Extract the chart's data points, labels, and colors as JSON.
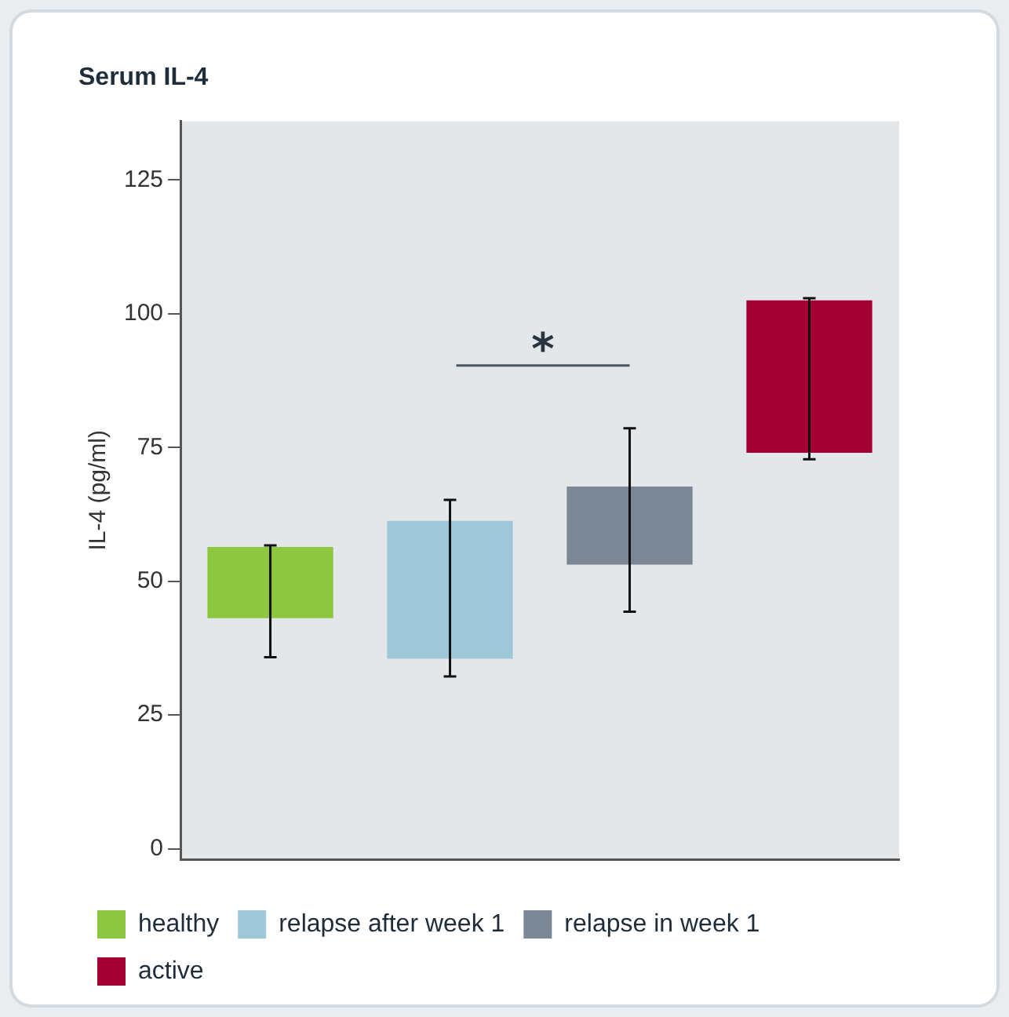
{
  "chart_data": {
    "type": "bar",
    "title": "Serum IL-4",
    "ylabel": "IL-4 (pg/ml)",
    "categories": [
      null,
      null,
      null,
      null
    ],
    "series": [
      {
        "name": "healthy",
        "color": "#8dc63f",
        "values": [
          13.3,
          null,
          null,
          null
        ],
        "base": [
          43.1,
          null,
          null,
          null
        ],
        "errors": [
          [
            35.8,
            56.7
          ],
          null,
          null,
          null
        ]
      },
      {
        "name": "relapse after week 1",
        "color": "#9ec8d8",
        "values": [
          null,
          25.8,
          null,
          null
        ],
        "base": [
          null,
          35.5,
          null,
          null
        ],
        "errors": [
          null,
          [
            32.2,
            65.2
          ],
          null,
          null
        ]
      },
      {
        "name": "relapse in week 1",
        "color": "#7b8794",
        "values": [
          null,
          null,
          14.6,
          null
        ],
        "base": [
          null,
          null,
          53.1,
          null
        ],
        "errors": [
          null,
          null,
          [
            44.3,
            78.6
          ],
          null
        ]
      },
      {
        "name": "active",
        "color": "#a50034",
        "values": [
          null,
          null,
          null,
          28.5
        ],
        "base": [
          null,
          null,
          null,
          74
        ],
        "errors": [
          null,
          null,
          null,
          [
            72.8,
            102.9
          ]
        ]
      }
    ],
    "ylim": [
      -2,
      136
    ],
    "yticks": [
      0,
      25,
      50,
      75,
      100,
      125
    ],
    "grid": false,
    "legend": "bottom",
    "annotations": [
      "*"
    ]
  }
}
